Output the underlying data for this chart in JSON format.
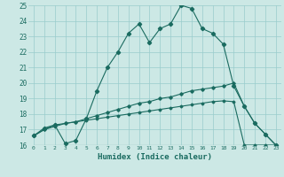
{
  "title": "",
  "xlabel": "Humidex (Indice chaleur)",
  "ylabel": "",
  "bg_color": "#cce8e5",
  "grid_color": "#99cccc",
  "line_color": "#1a6b60",
  "xlim": [
    -0.5,
    23.5
  ],
  "ylim": [
    16,
    25
  ],
  "xticks": [
    0,
    1,
    2,
    3,
    4,
    5,
    6,
    7,
    8,
    9,
    10,
    11,
    12,
    13,
    14,
    15,
    16,
    17,
    18,
    19,
    20,
    21,
    22,
    23
  ],
  "yticks": [
    16,
    17,
    18,
    19,
    20,
    21,
    22,
    23,
    24,
    25
  ],
  "line1_x": [
    0,
    1,
    2,
    3,
    4,
    5,
    6,
    7,
    8,
    9,
    10,
    11,
    12,
    13,
    14,
    15,
    16,
    17,
    18,
    19,
    20,
    21,
    22,
    23
  ],
  "line1_y": [
    16.6,
    17.1,
    17.3,
    16.1,
    16.3,
    17.7,
    19.5,
    21.0,
    22.0,
    23.2,
    23.8,
    22.6,
    23.5,
    23.8,
    25.0,
    24.8,
    23.5,
    23.2,
    22.5,
    19.8,
    18.5,
    17.4,
    16.7,
    16.0
  ],
  "line2_x": [
    0,
    1,
    2,
    3,
    4,
    5,
    6,
    7,
    8,
    9,
    10,
    11,
    12,
    13,
    14,
    15,
    16,
    17,
    18,
    19,
    20,
    21,
    22,
    23
  ],
  "line2_y": [
    16.6,
    17.0,
    17.3,
    17.4,
    17.5,
    17.7,
    17.9,
    18.1,
    18.3,
    18.5,
    18.7,
    18.8,
    19.0,
    19.1,
    19.3,
    19.5,
    19.6,
    19.7,
    19.8,
    20.0,
    18.5,
    17.4,
    16.7,
    16.0
  ],
  "line3_x": [
    0,
    1,
    2,
    3,
    4,
    5,
    6,
    7,
    8,
    9,
    10,
    11,
    12,
    13,
    14,
    15,
    16,
    17,
    18,
    19,
    20,
    21,
    22,
    23
  ],
  "line3_y": [
    16.6,
    17.0,
    17.2,
    17.4,
    17.5,
    17.6,
    17.7,
    17.8,
    17.9,
    18.0,
    18.1,
    18.2,
    18.3,
    18.4,
    18.5,
    18.6,
    18.7,
    18.8,
    18.85,
    18.8,
    16.0,
    16.0,
    16.0,
    16.0
  ],
  "line4_x": [
    0,
    1,
    2,
    3,
    4,
    5,
    6,
    7,
    8,
    9,
    10,
    11,
    12,
    13,
    14,
    15,
    16,
    17,
    18,
    19,
    20,
    21,
    22,
    23
  ],
  "line4_y": [
    16.0,
    16.0,
    16.0,
    16.0,
    16.0,
    16.0,
    16.0,
    16.0,
    16.0,
    16.0,
    16.0,
    16.0,
    16.0,
    16.0,
    16.0,
    16.0,
    16.0,
    16.0,
    16.0,
    16.0,
    16.0,
    16.0,
    16.0,
    16.0
  ]
}
